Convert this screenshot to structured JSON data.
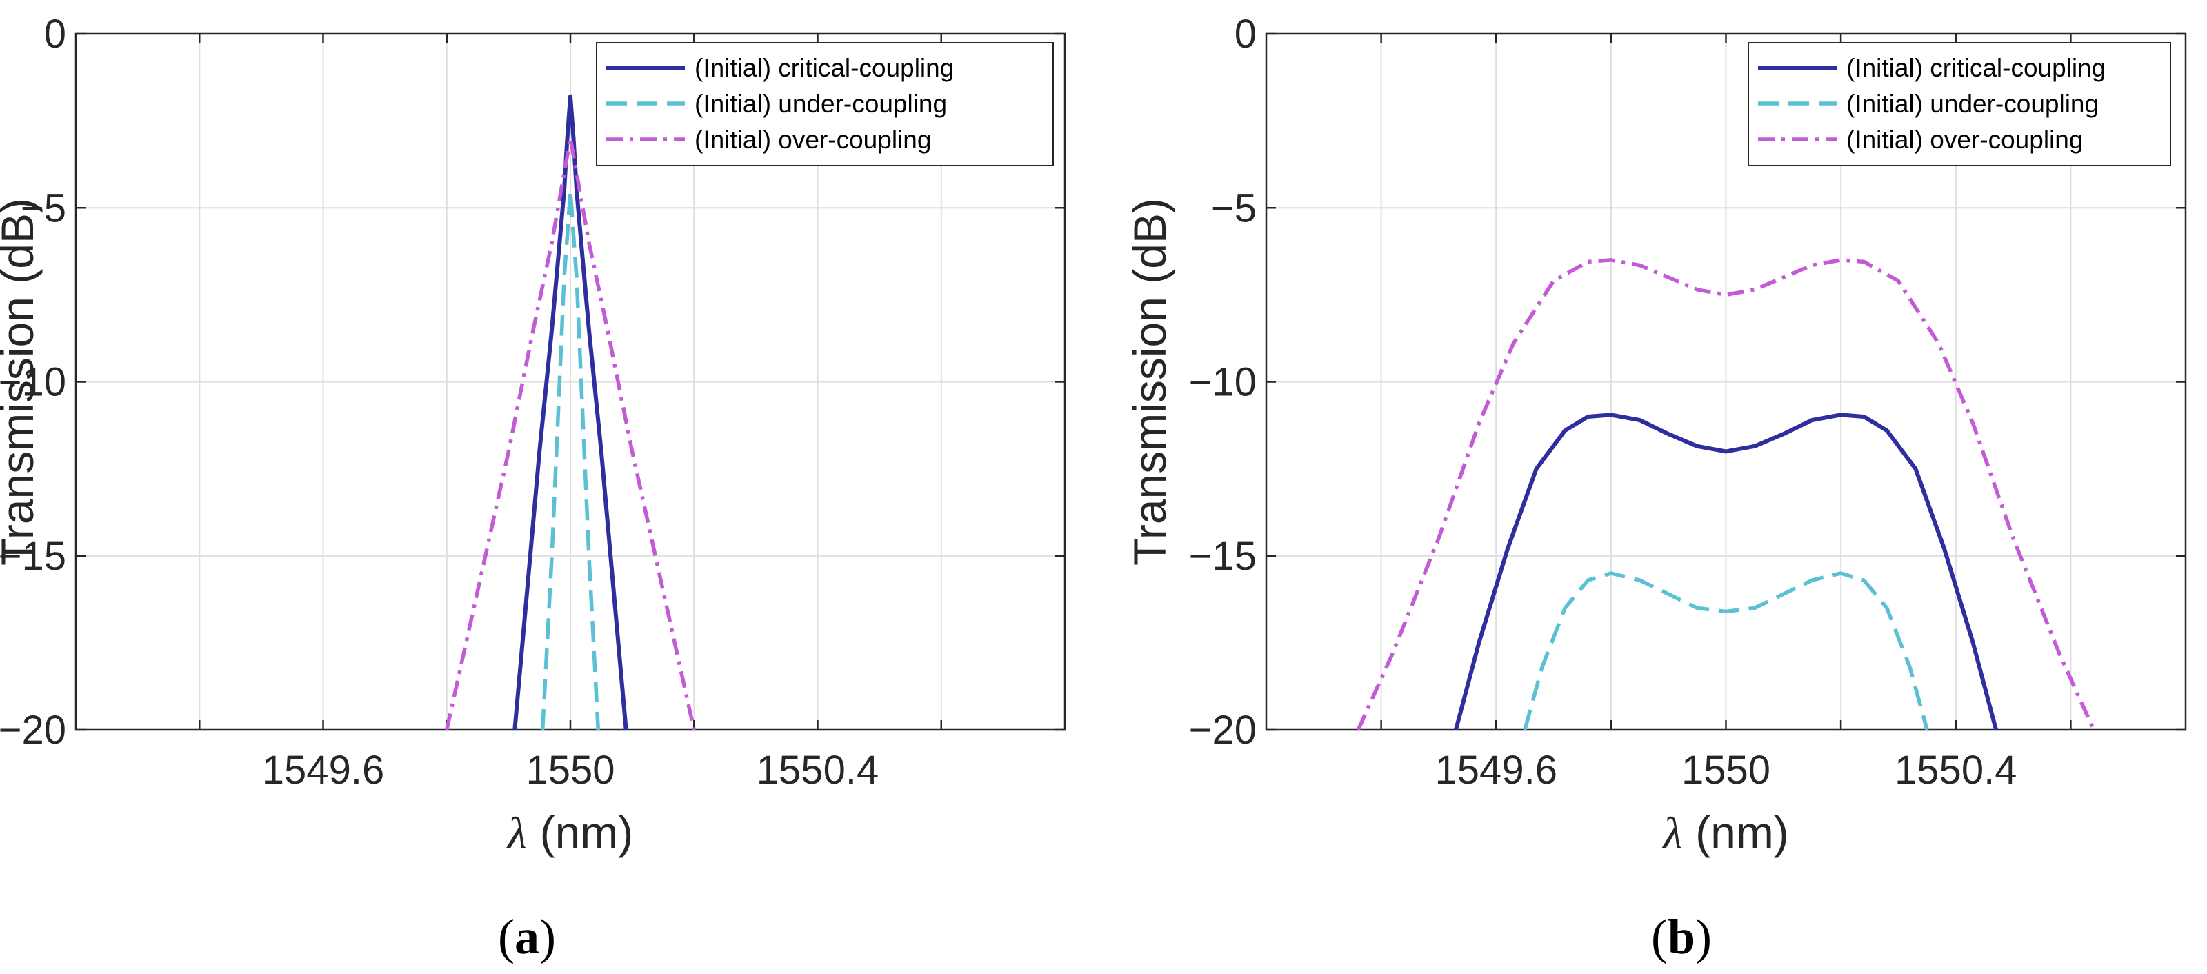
{
  "captions": {
    "a": "(a)",
    "b": "(b)",
    "a_letter": "a",
    "b_letter": "b"
  },
  "chart_data": [
    {
      "type": "line",
      "panel": "a",
      "xlabel": "λ (nm)",
      "xlabel_symbol": "λ",
      "xlabel_unit": "(nm)",
      "ylabel": "Transmission (dB)",
      "xlim": [
        1549.2,
        1550.8
      ],
      "ylim": [
        -20,
        0
      ],
      "xticks": [
        1549.6,
        1550,
        1550.4
      ],
      "xtick_labels": [
        "1549.6",
        "1550",
        "1550.4"
      ],
      "xgrid": [
        1549.4,
        1549.6,
        1549.8,
        1550,
        1550.2,
        1550.4,
        1550.6
      ],
      "yticks": [
        0,
        -5,
        -10,
        -15,
        -20
      ],
      "ytick_labels": [
        "0",
        "−5",
        "−10",
        "−15",
        "−20"
      ],
      "grid": true,
      "legend": "top-right",
      "series": [
        {
          "name": "(Initial) critical-coupling",
          "color": "#2E2E9E",
          "style": "solid",
          "x": [
            1549.91,
            1549.93,
            1549.95,
            1549.97,
            1549.98,
            1549.99,
            1549.995,
            1550.0,
            1550.005,
            1550.01,
            1550.02,
            1550.03,
            1550.05,
            1550.07,
            1550.09
          ],
          "y": [
            -20,
            -16,
            -12,
            -8.5,
            -6.5,
            -4.5,
            -3.0,
            -1.8,
            -3.0,
            -4.5,
            -6.5,
            -8.5,
            -12,
            -16,
            -20
          ]
        },
        {
          "name": "(Initial) under-coupling",
          "color": "#5BC0D4",
          "style": "dashed",
          "x": [
            1549.955,
            1549.97,
            1549.98,
            1549.99,
            1549.995,
            1550.0,
            1550.005,
            1550.01,
            1550.02,
            1550.03,
            1550.045
          ],
          "y": [
            -20,
            -15,
            -11,
            -7,
            -5.8,
            -4.5,
            -5.8,
            -7,
            -11,
            -15,
            -20
          ]
        },
        {
          "name": "(Initial) over-coupling",
          "color": "#C45BD6",
          "style": "dashdot",
          "x": [
            1549.8,
            1549.85,
            1549.9,
            1549.94,
            1549.97,
            1549.99,
            1550.0,
            1550.01,
            1550.03,
            1550.06,
            1550.1,
            1550.15,
            1550.2
          ],
          "y": [
            -20,
            -16,
            -12,
            -8.5,
            -6,
            -4,
            -3,
            -4,
            -6,
            -8.5,
            -12,
            -16,
            -20
          ]
        }
      ]
    },
    {
      "type": "line",
      "panel": "b",
      "xlabel": "λ (nm)",
      "xlabel_symbol": "λ",
      "xlabel_unit": "(nm)",
      "ylabel": "Transmission (dB)",
      "xlim": [
        1549.2,
        1550.8
      ],
      "ylim": [
        -20,
        0
      ],
      "xticks": [
        1549.6,
        1550,
        1550.4
      ],
      "xtick_labels": [
        "1549.6",
        "1550",
        "1550.4"
      ],
      "xgrid": [
        1549.4,
        1549.6,
        1549.8,
        1550,
        1550.2,
        1550.4,
        1550.6
      ],
      "yticks": [
        0,
        -5,
        -10,
        -15,
        -20
      ],
      "ytick_labels": [
        "0",
        "−5",
        "−10",
        "−15",
        "−20"
      ],
      "grid": true,
      "legend": "top-right",
      "series": [
        {
          "name": "(Initial) critical-coupling",
          "color": "#2E2E9E",
          "style": "solid",
          "x": [
            1549.53,
            1549.57,
            1549.62,
            1549.67,
            1549.72,
            1549.76,
            1549.8,
            1549.85,
            1549.9,
            1549.95,
            1550.0,
            1550.05,
            1550.1,
            1550.15,
            1550.2,
            1550.24,
            1550.28,
            1550.33,
            1550.38,
            1550.43,
            1550.47
          ],
          "y": [
            -20,
            -17.5,
            -14.8,
            -12.5,
            -11.4,
            -11.0,
            -10.95,
            -11.1,
            -11.5,
            -11.85,
            -12.0,
            -11.85,
            -11.5,
            -11.1,
            -10.95,
            -11.0,
            -11.4,
            -12.5,
            -14.8,
            -17.5,
            -20
          ]
        },
        {
          "name": "(Initial) under-coupling",
          "color": "#5BC0D4",
          "style": "dashed",
          "x": [
            1549.65,
            1549.68,
            1549.72,
            1549.76,
            1549.8,
            1549.85,
            1549.9,
            1549.95,
            1550.0,
            1550.05,
            1550.1,
            1550.15,
            1550.2,
            1550.24,
            1550.28,
            1550.32,
            1550.35
          ],
          "y": [
            -20,
            -18.2,
            -16.5,
            -15.7,
            -15.5,
            -15.7,
            -16.1,
            -16.5,
            -16.6,
            -16.5,
            -16.1,
            -15.7,
            -15.5,
            -15.7,
            -16.5,
            -18.2,
            -20
          ]
        },
        {
          "name": "(Initial) over-coupling",
          "color": "#C45BD6",
          "style": "dashdot",
          "x": [
            1549.36,
            1549.42,
            1549.5,
            1549.57,
            1549.63,
            1549.7,
            1549.76,
            1549.8,
            1549.85,
            1549.9,
            1549.95,
            1550.0,
            1550.05,
            1550.1,
            1550.15,
            1550.2,
            1550.24,
            1550.3,
            1550.37,
            1550.43,
            1550.5,
            1550.58,
            1550.64
          ],
          "y": [
            -20,
            -17.8,
            -14.5,
            -11.2,
            -8.9,
            -7.1,
            -6.55,
            -6.5,
            -6.65,
            -7.0,
            -7.35,
            -7.5,
            -7.35,
            -7.0,
            -6.65,
            -6.5,
            -6.55,
            -7.1,
            -8.9,
            -11.2,
            -14.5,
            -17.8,
            -20
          ]
        }
      ]
    }
  ]
}
